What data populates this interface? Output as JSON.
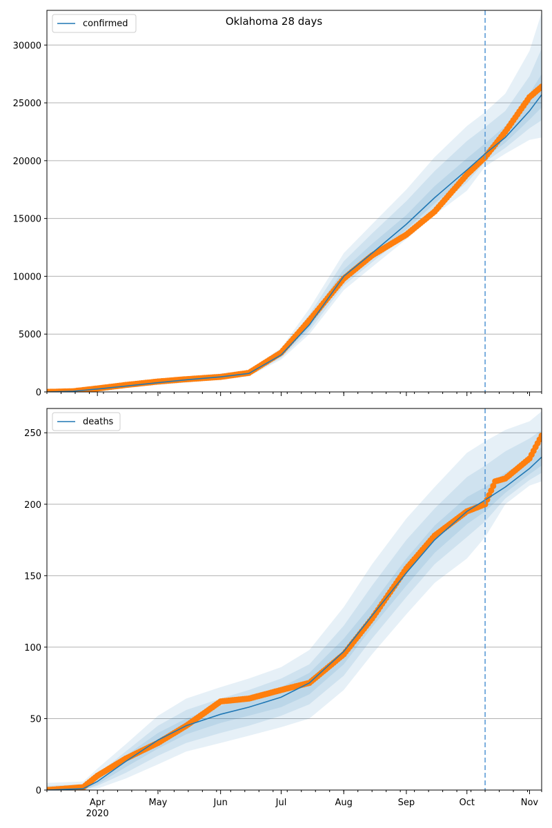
{
  "title": "Oklahoma 28 days",
  "colors": {
    "model_line": "#1f77b4",
    "observed_points": "#ff7f0e",
    "band": "#1f77b4",
    "grid": "#b0b0b0",
    "cutoff_line": "#5b9bd5"
  },
  "chart_data": [
    {
      "type": "line",
      "panel": "top",
      "legend": {
        "label": "confirmed",
        "placement": "top-left"
      },
      "x_range": [
        "2020-03-07",
        "2020-11-07"
      ],
      "ylim": [
        0,
        33000
      ],
      "yticks": [
        0,
        5000,
        10000,
        15000,
        20000,
        25000,
        30000
      ],
      "grid": "y",
      "forecast_start": "2020-10-10",
      "model": {
        "x": [
          "2020-03-07",
          "2020-03-20",
          "2020-04-01",
          "2020-04-15",
          "2020-05-01",
          "2020-05-15",
          "2020-06-01",
          "2020-06-15",
          "2020-07-01",
          "2020-07-15",
          "2020-08-01",
          "2020-08-15",
          "2020-09-01",
          "2020-09-15",
          "2020-10-01",
          "2020-10-10",
          "2020-10-20",
          "2020-11-01",
          "2020-11-07"
        ],
        "y": [
          0,
          60,
          250,
          500,
          800,
          1050,
          1300,
          1600,
          3200,
          5800,
          10000,
          12000,
          14500,
          16800,
          19200,
          20600,
          22000,
          24300,
          25700
        ],
        "bands": [
          {
            "lower": [
              0,
              30,
              150,
              350,
              600,
              800,
              1050,
              1350,
              2800,
              5000,
              8800,
              10800,
              13200,
              15300,
              17400,
              19500,
              20600,
              21800,
              22000
            ],
            "upper": [
              10,
              100,
              380,
              700,
              1050,
              1350,
              1600,
              1900,
              3800,
              7200,
              12000,
              14500,
              17500,
              20300,
              23000,
              24200,
              25800,
              29500,
              32800
            ]
          },
          {
            "lower": [
              0,
              40,
              180,
              400,
              680,
              900,
              1150,
              1450,
              2950,
              5300,
              9200,
              11200,
              13600,
              15800,
              18100,
              19900,
              21100,
              22800,
              23500
            ],
            "upper": [
              5,
              85,
              330,
              620,
              950,
              1230,
              1480,
              1780,
              3550,
              6700,
              11300,
              13700,
              16500,
              19100,
              21700,
              22900,
              24300,
              27300,
              29700
            ]
          },
          {
            "lower": [
              0,
              50,
              210,
              440,
              740,
              980,
              1230,
              1530,
              3080,
              5550,
              9600,
              11600,
              14050,
              16300,
              18650,
              20250,
              21550,
              23550,
              24600
            ],
            "upper": [
              2,
              72,
              290,
              560,
              870,
              1130,
              1380,
              1680,
              3350,
              6250,
              10600,
              12800,
              15300,
              17800,
              20200,
              21500,
              23000,
              25800,
              27500
            ]
          }
        ]
      },
      "observed": {
        "x": [
          "2020-03-07",
          "2020-03-20",
          "2020-04-01",
          "2020-04-15",
          "2020-05-01",
          "2020-05-15",
          "2020-06-01",
          "2020-06-15",
          "2020-07-01",
          "2020-07-15",
          "2020-08-01",
          "2020-08-15",
          "2020-09-01",
          "2020-09-15",
          "2020-10-01",
          "2020-10-10",
          "2020-10-20",
          "2020-11-01",
          "2020-11-07"
        ],
        "y": [
          0,
          60,
          300,
          600,
          900,
          1100,
          1300,
          1650,
          3400,
          6200,
          9800,
          11800,
          13600,
          15600,
          18800,
          20300,
          22500,
          25500,
          26400
        ]
      }
    },
    {
      "type": "line",
      "panel": "bottom",
      "legend": {
        "label": "deaths",
        "placement": "top-left"
      },
      "x_range": [
        "2020-03-07",
        "2020-11-07"
      ],
      "ylim": [
        0,
        267
      ],
      "yticks": [
        0,
        50,
        100,
        150,
        200,
        250
      ],
      "grid": "y",
      "forecast_start": "2020-10-10",
      "xticks": [
        {
          "date": "2020-04-01",
          "label": "Apr",
          "sublabel": "2020"
        },
        {
          "date": "2020-05-01",
          "label": "May"
        },
        {
          "date": "2020-06-01",
          "label": "Jun"
        },
        {
          "date": "2020-07-01",
          "label": "Jul"
        },
        {
          "date": "2020-08-01",
          "label": "Aug"
        },
        {
          "date": "2020-09-01",
          "label": "Sep"
        },
        {
          "date": "2020-10-01",
          "label": "Oct"
        },
        {
          "date": "2020-11-01",
          "label": "Nov"
        }
      ],
      "model": {
        "x": [
          "2020-03-07",
          "2020-03-25",
          "2020-04-01",
          "2020-04-15",
          "2020-05-01",
          "2020-05-15",
          "2020-06-01",
          "2020-06-15",
          "2020-07-01",
          "2020-07-15",
          "2020-08-01",
          "2020-08-15",
          "2020-09-01",
          "2020-09-15",
          "2020-10-01",
          "2020-10-10",
          "2020-10-20",
          "2020-11-01",
          "2020-11-07"
        ],
        "y": [
          0,
          1,
          6,
          20,
          35,
          45,
          53,
          58,
          65,
          75,
          97,
          122,
          152,
          175,
          195,
          203,
          212,
          225,
          233
        ],
        "bands": [
          {
            "lower": [
              0,
              0,
              1,
              8,
              18,
              27,
              33,
              38,
              44,
              50,
              70,
              95,
              123,
              145,
              162,
              177,
              200,
              213,
              216
            ],
            "upper": [
              5,
              6,
              15,
              32,
              52,
              64,
              72,
              78,
              86,
              98,
              128,
              158,
              190,
              212,
              236,
              244,
              252,
              258,
              265
            ]
          },
          {
            "lower": [
              0,
              0,
              3,
              12,
              24,
              33,
              40,
              45,
              52,
              60,
              80,
              106,
              135,
              158,
              177,
              188,
              204,
              217,
              222
            ],
            "upper": [
              3,
              4,
              11,
              27,
              45,
              56,
              64,
              70,
              78,
              88,
              115,
              143,
              175,
              197,
              219,
              227,
              237,
              246,
              252
            ]
          },
          {
            "lower": [
              0,
              0,
              4,
              16,
              29,
              39,
              47,
              52,
              58,
              67,
              88,
              114,
              143,
              166,
              186,
              195,
              208,
              221,
              227
            ],
            "upper": [
              1,
              2,
              8,
              24,
              40,
              50,
              59,
              64,
              72,
              82,
              106,
              130,
              162,
              185,
              205,
              212,
              222,
              232,
              240
            ]
          }
        ]
      },
      "observed": {
        "x": [
          "2020-03-07",
          "2020-03-25",
          "2020-04-01",
          "2020-04-15",
          "2020-05-01",
          "2020-05-15",
          "2020-06-01",
          "2020-06-15",
          "2020-07-01",
          "2020-07-15",
          "2020-08-01",
          "2020-08-15",
          "2020-09-01",
          "2020-09-15",
          "2020-10-01",
          "2020-10-10",
          "2020-10-15",
          "2020-10-20",
          "2020-11-01",
          "2020-11-07"
        ],
        "y": [
          0,
          2,
          10,
          22,
          33,
          45,
          62,
          64,
          70,
          75,
          95,
          120,
          155,
          178,
          195,
          200,
          216,
          218,
          232,
          248
        ]
      }
    }
  ]
}
